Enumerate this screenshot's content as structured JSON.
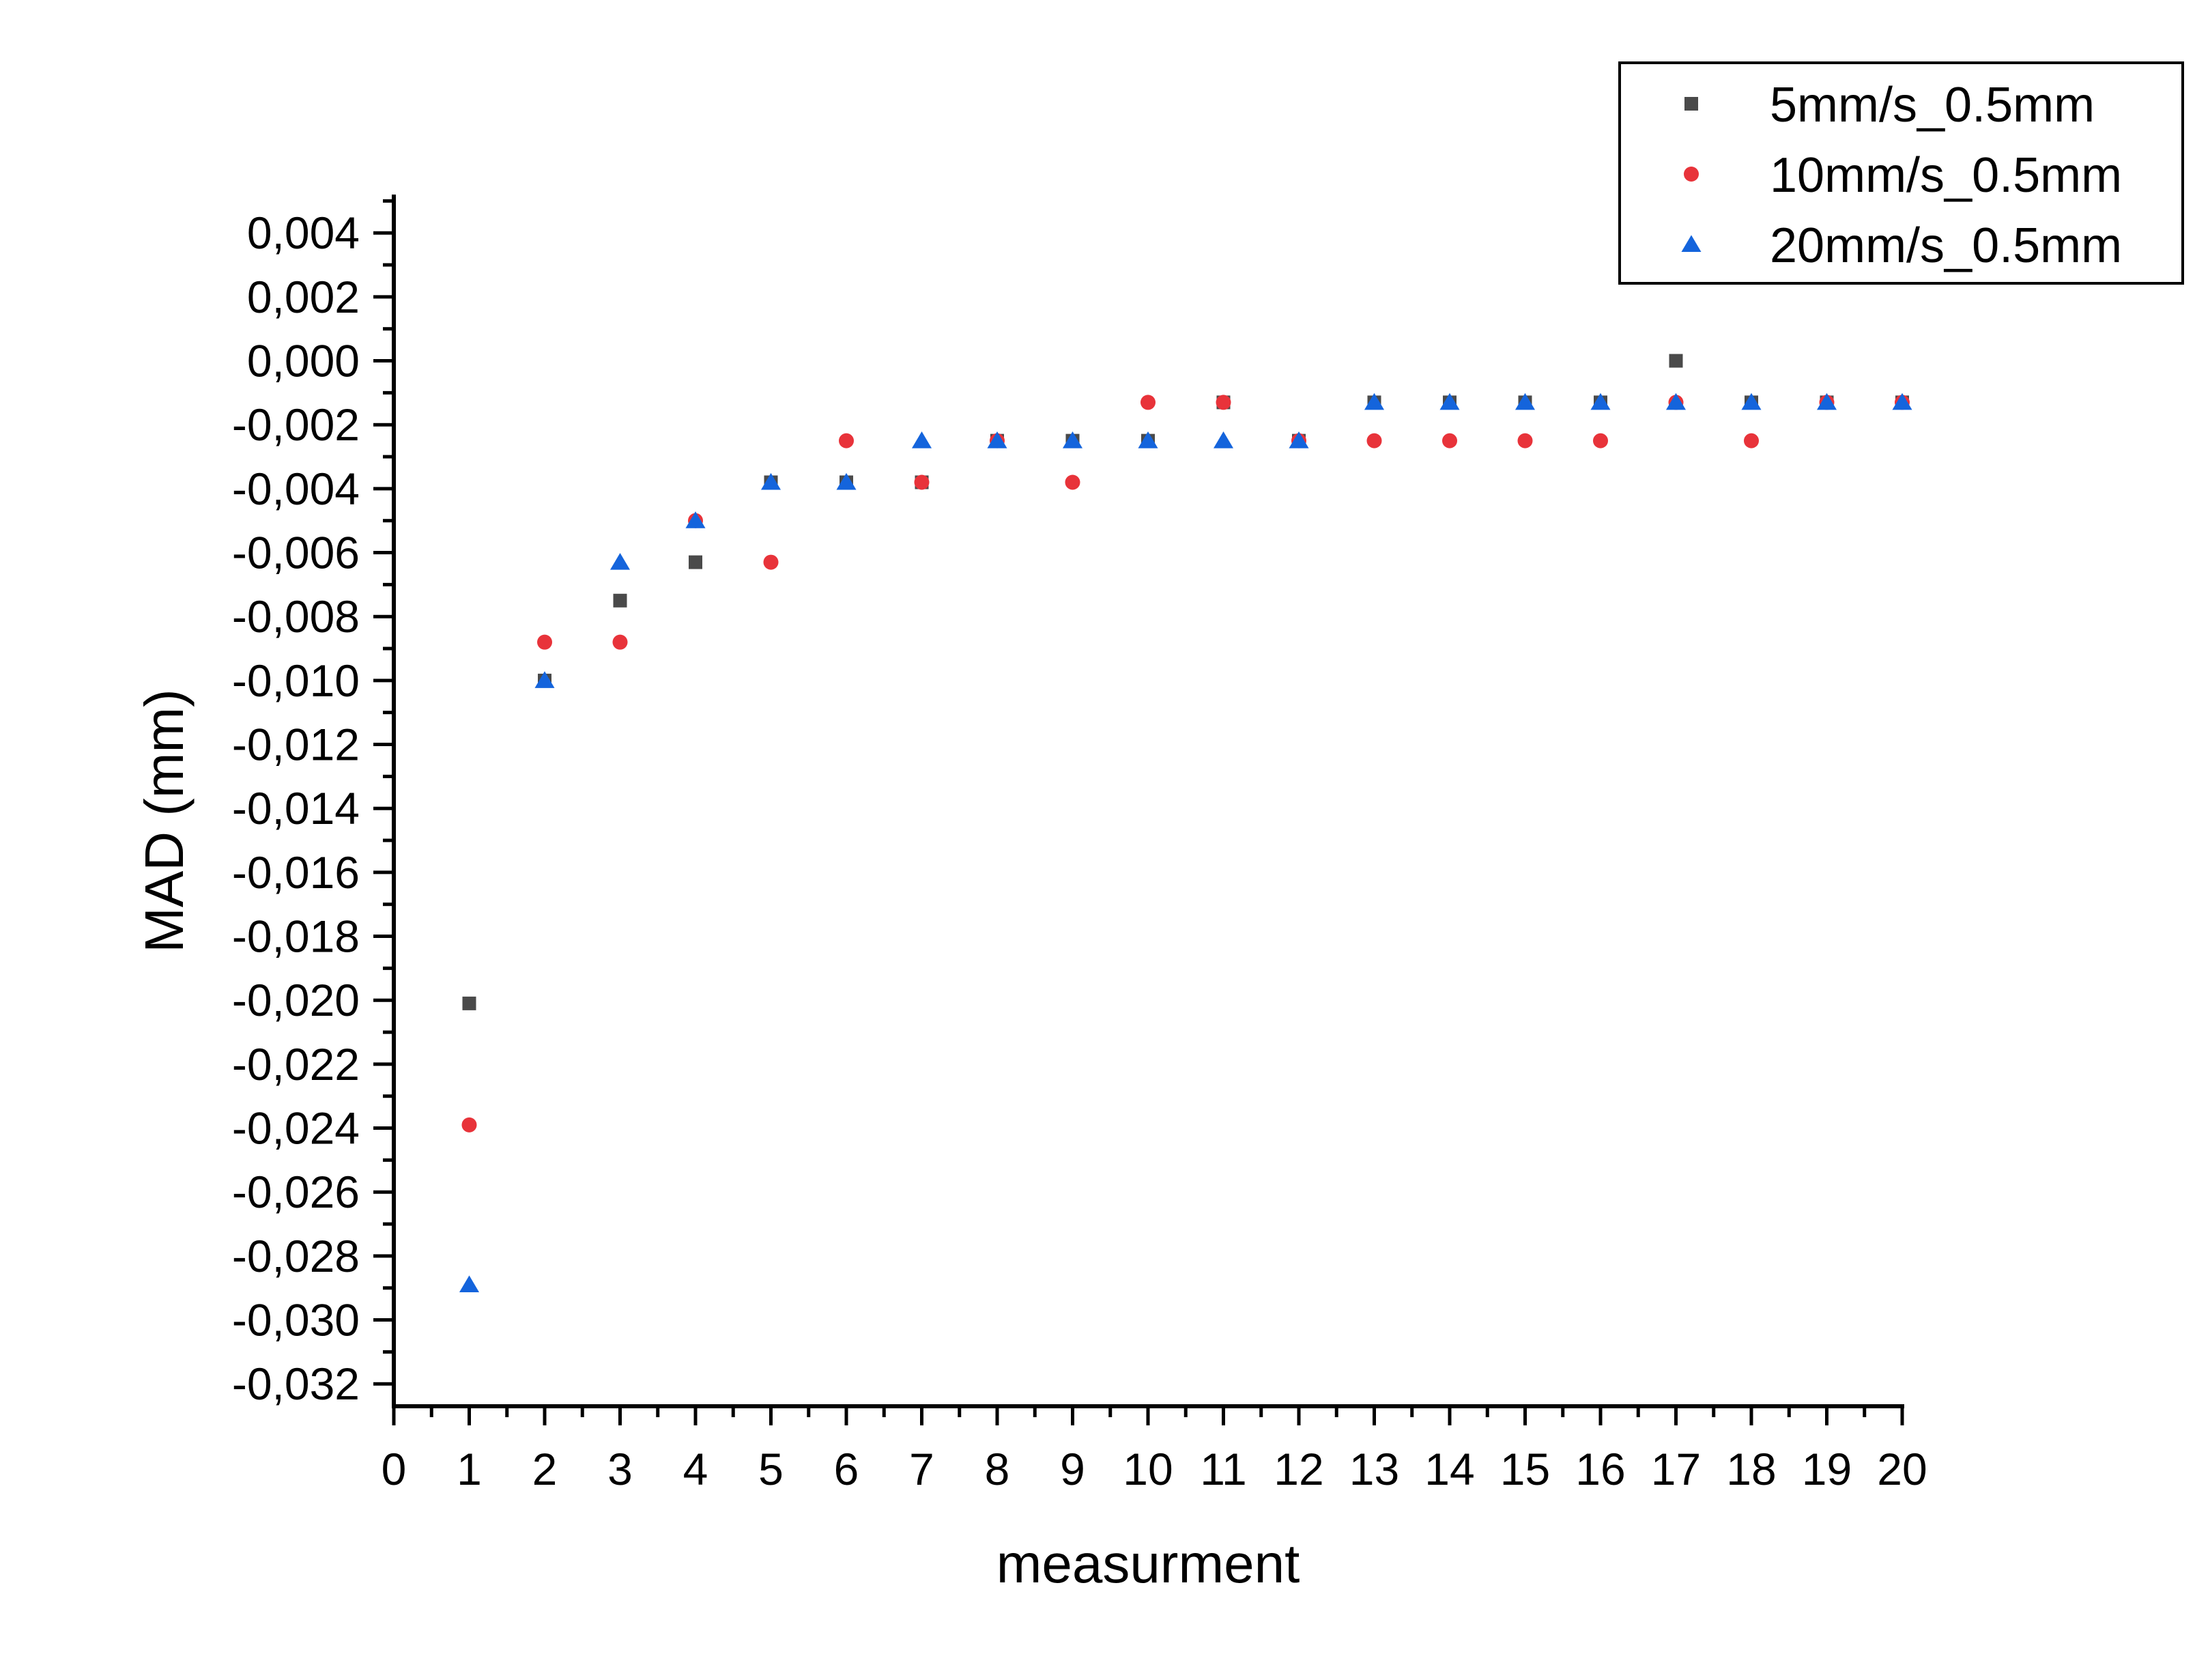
{
  "chart_data": {
    "type": "scatter",
    "xlabel": "measurment",
    "ylabel": "MAD (mm)",
    "xlim": [
      0,
      20
    ],
    "ylim": [
      -0.0327,
      0.0052
    ],
    "x_ticks": [
      0,
      1,
      2,
      3,
      4,
      5,
      6,
      7,
      8,
      9,
      10,
      11,
      12,
      13,
      14,
      15,
      16,
      17,
      18,
      19,
      20
    ],
    "x_tick_labels": [
      "0",
      "1",
      "2",
      "3",
      "4",
      "5",
      "6",
      "7",
      "8",
      "9",
      "10",
      "11",
      "12",
      "13",
      "14",
      "15",
      "16",
      "17",
      "18",
      "19",
      "20"
    ],
    "y_ticks": [
      0.004,
      0.002,
      0,
      -0.002,
      -0.004,
      -0.006,
      -0.008,
      -0.01,
      -0.012,
      -0.014,
      -0.016,
      -0.018,
      -0.02,
      -0.022,
      -0.024,
      -0.026,
      -0.028,
      -0.03,
      -0.032
    ],
    "y_tick_labels": [
      "0,004",
      "0,002",
      "0,000",
      "-0,002",
      "-0,004",
      "-0,006",
      "-0,008",
      "-0,010",
      "-0,012",
      "-0,014",
      "-0,016",
      "-0,018",
      "-0,020",
      "-0,022",
      "-0,024",
      "-0,026",
      "-0,028",
      "-0,030",
      "-0,032"
    ],
    "grid": false,
    "legend_position": "top-right",
    "x": [
      1,
      2,
      3,
      4,
      5,
      6,
      7,
      8,
      9,
      10,
      11,
      12,
      13,
      14,
      15,
      16,
      17,
      18,
      19,
      20
    ],
    "series": [
      {
        "name": "5mm/s_0.5mm",
        "marker": "square",
        "color": "#4a4a4a",
        "values": [
          -0.0201,
          -0.01,
          -0.0075,
          -0.0063,
          -0.0038,
          -0.0038,
          -0.0038,
          -0.0025,
          -0.0025,
          -0.0025,
          -0.0013,
          -0.0025,
          -0.0013,
          -0.0013,
          -0.0013,
          -0.0013,
          0.0,
          -0.0013,
          -0.0013,
          -0.0013
        ]
      },
      {
        "name": "10mm/s_0.5mm",
        "marker": "circle",
        "color": "#e8333a",
        "values": [
          -0.0239,
          -0.0088,
          -0.0088,
          -0.005,
          -0.0063,
          -0.0025,
          -0.0038,
          -0.0025,
          -0.0038,
          -0.0013,
          -0.0013,
          -0.0025,
          -0.0025,
          -0.0025,
          -0.0025,
          -0.0025,
          -0.0013,
          -0.0025,
          -0.0013,
          -0.0013
        ]
      },
      {
        "name": "20mm/s_0.5mm",
        "marker": "triangle",
        "color": "#1464dc",
        "values": [
          -0.0289,
          -0.01,
          -0.0063,
          -0.005,
          -0.0038,
          -0.0038,
          -0.0025,
          -0.0025,
          -0.0025,
          -0.0025,
          -0.0025,
          -0.0025,
          -0.0013,
          -0.0013,
          -0.0013,
          -0.0013,
          -0.0013,
          -0.0013,
          -0.0013,
          -0.0013
        ]
      }
    ]
  }
}
